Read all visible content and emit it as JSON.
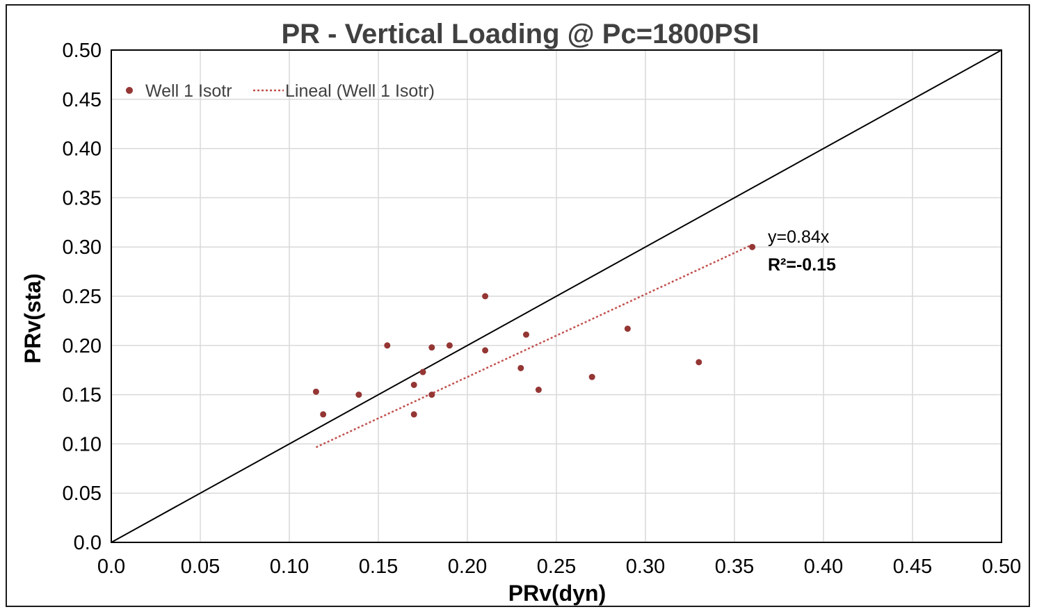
{
  "chart_data": {
    "type": "scatter",
    "title": "PR - Vertical Loading @ Pc=1800PSI",
    "xlabel": "PRv(dyn)",
    "ylabel": "PRv(sta)",
    "xlim": [
      0,
      0.5
    ],
    "ylim": [
      0,
      0.5
    ],
    "x_tick_labels": [
      "0.0",
      "0.05",
      "0.10",
      "0.15",
      "0.20",
      "0.25",
      "0.30",
      "0.35",
      "0.40",
      "0.45",
      "0.50"
    ],
    "y_tick_labels": [
      "0.0",
      "0.05",
      "0.10",
      "0.15",
      "0.20",
      "0.25",
      "0.30",
      "0.35",
      "0.40",
      "0.45",
      "0.50"
    ],
    "grid": true,
    "legend_position": "top-left",
    "series": [
      {
        "name": "Well 1 Isotr",
        "color": "#943634",
        "points": [
          {
            "x": 0.115,
            "y": 0.153
          },
          {
            "x": 0.119,
            "y": 0.13
          },
          {
            "x": 0.139,
            "y": 0.15
          },
          {
            "x": 0.155,
            "y": 0.2
          },
          {
            "x": 0.17,
            "y": 0.16
          },
          {
            "x": 0.17,
            "y": 0.13
          },
          {
            "x": 0.175,
            "y": 0.173
          },
          {
            "x": 0.18,
            "y": 0.198
          },
          {
            "x": 0.18,
            "y": 0.15
          },
          {
            "x": 0.19,
            "y": 0.2
          },
          {
            "x": 0.21,
            "y": 0.25
          },
          {
            "x": 0.21,
            "y": 0.195
          },
          {
            "x": 0.23,
            "y": 0.177
          },
          {
            "x": 0.233,
            "y": 0.211
          },
          {
            "x": 0.24,
            "y": 0.155
          },
          {
            "x": 0.27,
            "y": 0.168
          },
          {
            "x": 0.29,
            "y": 0.217
          },
          {
            "x": 0.33,
            "y": 0.183
          },
          {
            "x": 0.36,
            "y": 0.3
          }
        ]
      }
    ],
    "trendline": {
      "name": "Lineal (Well 1 Isotr)",
      "color": "#c0504d",
      "slope": 0.84,
      "x_range": [
        0.115,
        0.36
      ],
      "equation": "y=0.84x",
      "r2_label": "R²=-0.15"
    },
    "reference_line": {
      "from": [
        0,
        0
      ],
      "to": [
        0.5,
        0.5
      ],
      "color": "#000000"
    }
  }
}
